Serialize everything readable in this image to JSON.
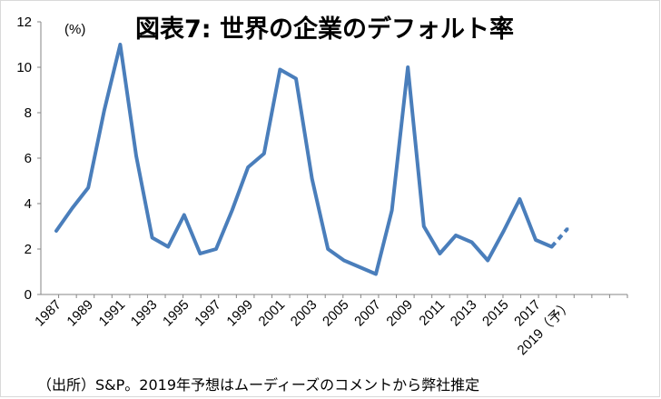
{
  "chart_data": {
    "type": "line",
    "title": "図表7: 世界の企業のデフォルト率",
    "unit_label": "(%)",
    "source_note": "（出所）S&P。2019年予想はムーディーズのコメントから弊社推定",
    "x": [
      1987,
      1988,
      1989,
      1990,
      1991,
      1992,
      1993,
      1994,
      1995,
      1996,
      1997,
      1998,
      1999,
      2000,
      2001,
      2002,
      2003,
      2004,
      2005,
      2006,
      2007,
      2008,
      2009,
      2010,
      2011,
      2012,
      2013,
      2014,
      2015,
      2016,
      2017,
      2018,
      2019
    ],
    "x_tick_labels": [
      "1987",
      "1989",
      "1991",
      "1993",
      "1995",
      "1997",
      "1999",
      "2001",
      "2003",
      "2005",
      "2007",
      "2009",
      "2011",
      "2013",
      "2015",
      "2017",
      "2019（予）"
    ],
    "series": [
      {
        "values": [
          2.8,
          3.8,
          4.7,
          8.1,
          11.0,
          6.1,
          2.5,
          2.1,
          3.5,
          1.8,
          2.0,
          3.7,
          5.6,
          6.2,
          9.9,
          9.5,
          5.1,
          2.0,
          1.5,
          1.2,
          0.9,
          3.7,
          10.0,
          3.0,
          1.8,
          2.6,
          2.3,
          1.5,
          2.8,
          4.2,
          2.4,
          2.1,
          2.9
        ],
        "forecast_from_index": 31,
        "color": "#4a7ebb"
      }
    ],
    "ylim": [
      0,
      12
    ],
    "y_ticks": [
      0,
      2,
      4,
      6,
      8,
      10,
      12
    ],
    "grid": false,
    "legend": "none"
  }
}
